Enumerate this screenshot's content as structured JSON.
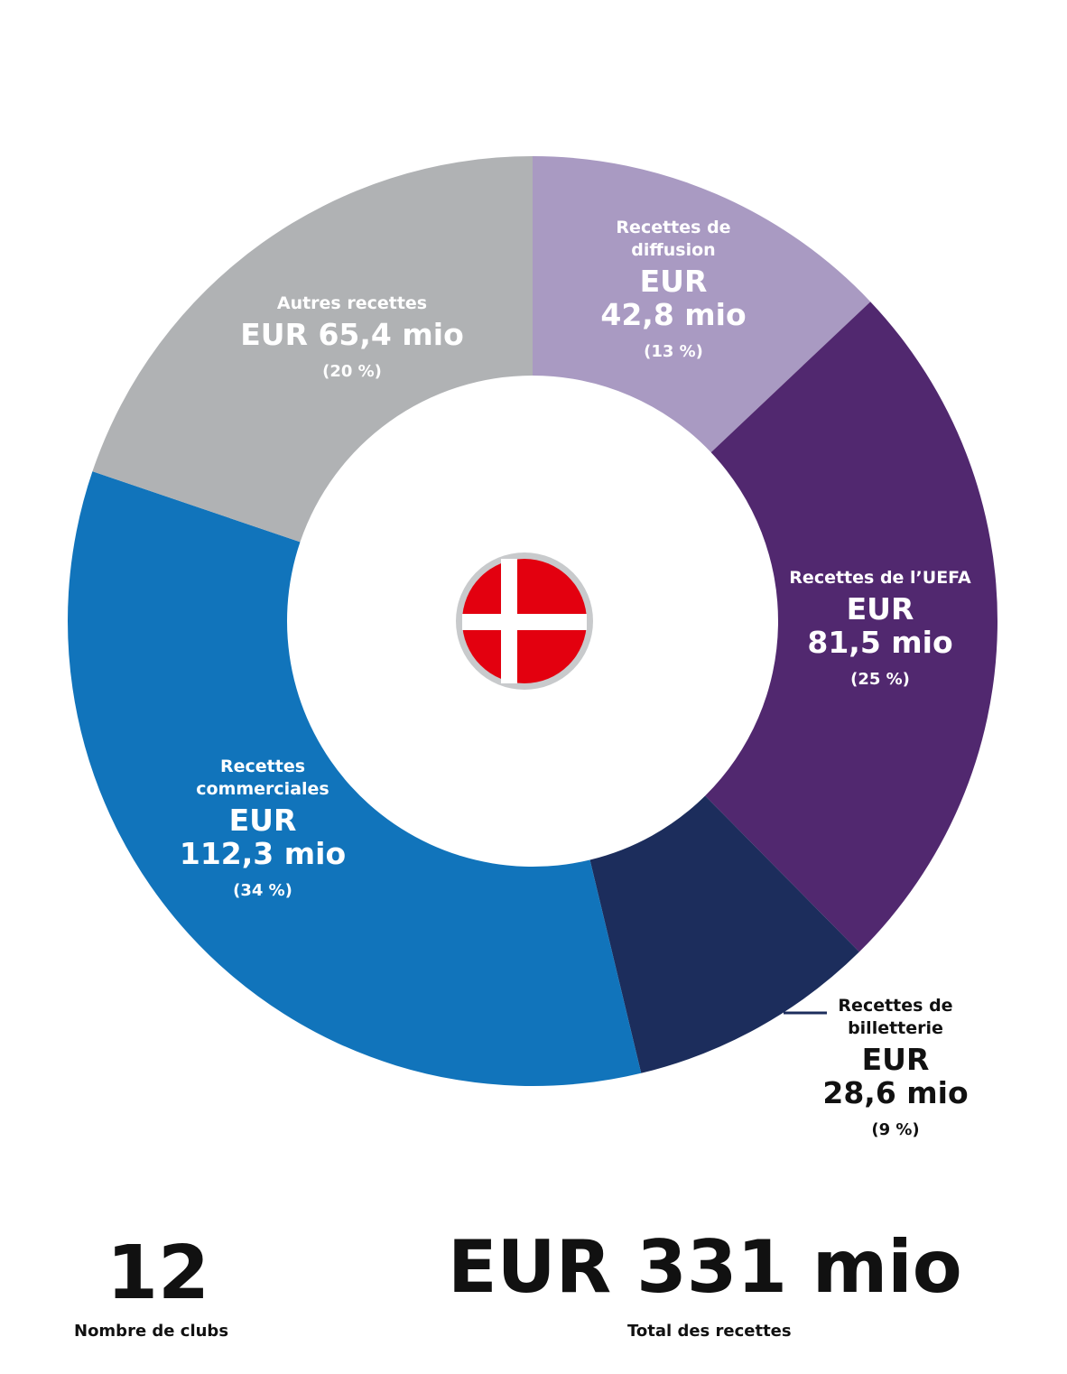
{
  "chart_data": {
    "type": "pie",
    "variant": "donut",
    "segments": [
      {
        "name": "Recettes de diffusion",
        "name_lines": [
          "Recettes de",
          "diffusion"
        ],
        "amount_lines": [
          "EUR",
          "42,8 mio"
        ],
        "value": 42.8,
        "percent_label": "(13 %)",
        "color": "#a99ac2",
        "text_color": "#ffffff"
      },
      {
        "name": "Recettes de l’UEFA",
        "name_lines": [
          "Recettes de l’UEFA"
        ],
        "amount_lines": [
          "EUR",
          "81,5 mio"
        ],
        "value": 81.5,
        "percent_label": "(25 %)",
        "color": "#51286f",
        "text_color": "#ffffff"
      },
      {
        "name": "Recettes de billetterie",
        "name_lines": [
          "Recettes de",
          "billetterie"
        ],
        "amount_lines": [
          "EUR",
          "28,6 mio"
        ],
        "value": 28.6,
        "percent_label": "(9 %)",
        "color": "#1c2d5c",
        "text_color": "#111111"
      },
      {
        "name": "Recettes commerciales",
        "name_lines": [
          "Recettes",
          "commerciales"
        ],
        "amount_lines": [
          "EUR",
          "112,3 mio"
        ],
        "value": 112.3,
        "percent_label": "(34 %)",
        "color": "#1174bb",
        "text_color": "#ffffff"
      },
      {
        "name": "Autres recettes",
        "name_lines": [
          "Autres recettes"
        ],
        "amount_lines": [
          "EUR 65,4 mio"
        ],
        "value": 65.4,
        "percent_label": "(20 %)",
        "color": "#b0b2b4",
        "text_color": "#ffffff"
      }
    ],
    "center_icon": "denmark-flag"
  },
  "flag_colors": {
    "red": "#e3000f",
    "white": "#ffffff",
    "ring": "#c8cacc"
  },
  "stats": {
    "clubs_value": "12",
    "clubs_label": "Nombre de clubs",
    "total_value": "EUR 331 mio",
    "total_label": "Total des recettes"
  }
}
